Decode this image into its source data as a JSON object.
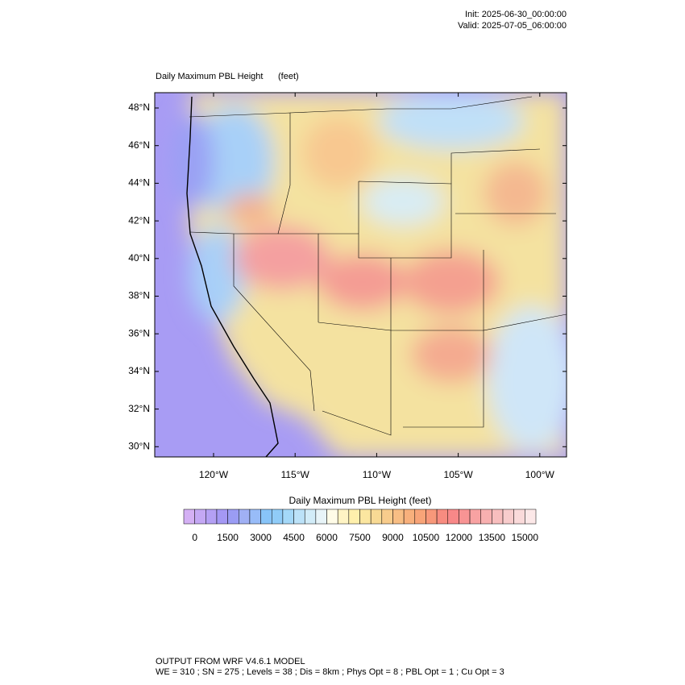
{
  "header": {
    "init": "Init: 2025-06-30_00:00:00",
    "valid": "Valid: 2025-07-05_06:00:00"
  },
  "map": {
    "title": "Daily Maximum PBL Height",
    "units": "(feet)",
    "lat_labels": [
      "48°N",
      "46°N",
      "44°N",
      "42°N",
      "40°N",
      "38°N",
      "36°N",
      "34°N",
      "32°N",
      "30°N"
    ],
    "lon_labels": [
      "120°W",
      "115°W",
      "110°W",
      "105°W",
      "100°W"
    ]
  },
  "colorbar": {
    "title": "Daily Maximum PBL Height  (feet)",
    "ticks": [
      0,
      1500,
      3000,
      4500,
      6000,
      7500,
      9000,
      10500,
      12000,
      13500,
      15000
    ],
    "colors": [
      "#d4b0f4",
      "#c4a8f4",
      "#b4a0f4",
      "#a498f4",
      "#9a9cf4",
      "#a0b0f4",
      "#98bcf8",
      "#88c4f8",
      "#90ccf8",
      "#a4d8f8",
      "#bce2f8",
      "#d2ecf8",
      "#e8f4f8",
      "#fffce8",
      "#fff4c4",
      "#fff0ac",
      "#fbe6a0",
      "#f8da94",
      "#f8cc8c",
      "#f8be84",
      "#f8b07c",
      "#f8a478",
      "#f8987a",
      "#f88c80",
      "#f88888",
      "#f89494",
      "#f8a2a2",
      "#f8b0b0",
      "#f8bebe",
      "#f8cccc",
      "#fadada",
      "#fce8e8"
    ]
  },
  "footer": {
    "line1": "OUTPUT FROM WRF V4.6.1 MODEL",
    "line2": "WE = 310 ; SN = 275 ; Levels = 38 ; Dis = 8km ; Phys Opt = 8 ; PBL Opt = 1 ; Cu Opt = 3"
  }
}
